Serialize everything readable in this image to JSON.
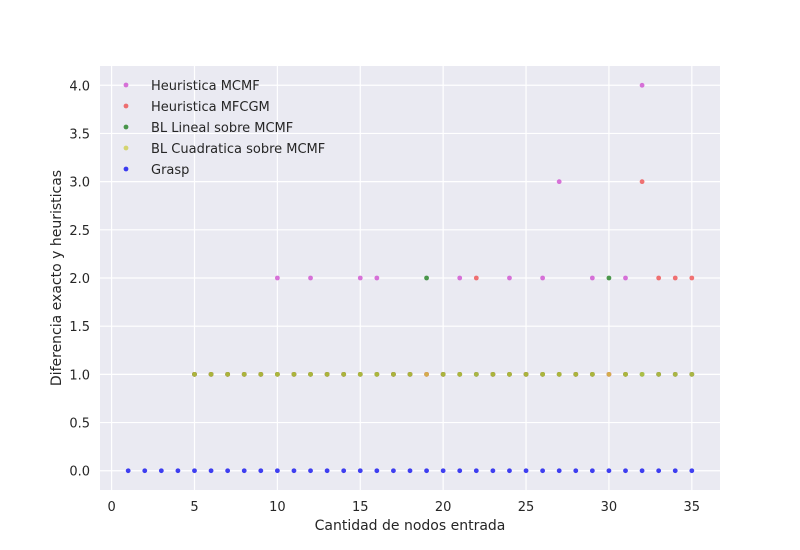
{
  "chart_data": {
    "type": "scatter",
    "xlabel": "Cantidad de nodos entrada",
    "ylabel": "Diferencia exacto y heuristicas",
    "xlim": [
      -0.7,
      36.7
    ],
    "ylim": [
      -0.2,
      4.2
    ],
    "xticks": [
      0,
      5,
      10,
      15,
      20,
      25,
      30,
      35
    ],
    "yticks": [
      0.0,
      0.5,
      1.0,
      1.5,
      2.0,
      2.5,
      3.0,
      3.5,
      4.0
    ],
    "xtick_labels": [
      "0",
      "5",
      "10",
      "15",
      "20",
      "25",
      "30",
      "35"
    ],
    "ytick_labels": [
      "0.0",
      "0.5",
      "1.0",
      "1.5",
      "2.0",
      "2.5",
      "3.0",
      "3.5",
      "4.0"
    ],
    "grid": true,
    "legend_position": "top-left",
    "series": [
      {
        "name": "Heuristica MCMF",
        "color": "#cc44cc",
        "x": [
          5,
          6,
          7,
          8,
          9,
          10,
          11,
          12,
          13,
          14,
          15,
          16,
          17,
          18,
          19,
          20,
          21,
          22,
          23,
          24,
          25,
          26,
          27,
          28,
          29,
          30,
          31,
          32,
          33,
          34,
          35
        ],
        "y": [
          1,
          1,
          1,
          1,
          1,
          2,
          1,
          2,
          1,
          1,
          2,
          2,
          1,
          1,
          1,
          1,
          2,
          1,
          1,
          2,
          1,
          2,
          3,
          1,
          2,
          1,
          2,
          4,
          1,
          1,
          1
        ]
      },
      {
        "name": "Heuristica MFCGM",
        "color": "#ee4444",
        "x": [
          5,
          6,
          7,
          8,
          9,
          10,
          11,
          12,
          13,
          14,
          15,
          16,
          17,
          18,
          19,
          20,
          21,
          22,
          23,
          24,
          25,
          26,
          27,
          28,
          29,
          30,
          31,
          32,
          33,
          34,
          35
        ],
        "y": [
          1,
          1,
          1,
          1,
          1,
          1,
          1,
          1,
          1,
          1,
          1,
          1,
          1,
          1,
          1,
          1,
          1,
          2,
          1,
          1,
          1,
          1,
          1,
          1,
          1,
          1,
          1,
          3,
          2,
          2,
          2
        ]
      },
      {
        "name": "BL Lineal sobre MCMF",
        "color": "#117711",
        "x": [
          5,
          6,
          7,
          8,
          9,
          10,
          11,
          12,
          13,
          14,
          15,
          16,
          17,
          18,
          19,
          20,
          21,
          22,
          23,
          24,
          25,
          26,
          27,
          28,
          29,
          30,
          31,
          32,
          33,
          34,
          35
        ],
        "y": [
          1,
          1,
          1,
          1,
          1,
          1,
          1,
          1,
          1,
          1,
          1,
          1,
          1,
          1,
          2,
          1,
          1,
          1,
          1,
          1,
          1,
          1,
          1,
          1,
          1,
          2,
          1,
          1,
          1,
          1,
          1
        ]
      },
      {
        "name": "BL Cuadratica sobre MCMF",
        "color": "#cccc44",
        "x": [
          5,
          6,
          7,
          8,
          9,
          10,
          11,
          12,
          13,
          14,
          15,
          16,
          17,
          18,
          19,
          20,
          21,
          22,
          23,
          24,
          25,
          26,
          27,
          28,
          29,
          30,
          31,
          32,
          33,
          34,
          35
        ],
        "y": [
          1,
          1,
          1,
          1,
          1,
          1,
          1,
          1,
          1,
          1,
          1,
          1,
          1,
          1,
          1,
          1,
          1,
          1,
          1,
          1,
          1,
          1,
          1,
          1,
          1,
          1,
          1,
          1,
          1,
          1,
          1
        ]
      },
      {
        "name": "Grasp",
        "color": "#0000ee",
        "x": [
          1,
          2,
          3,
          4,
          5,
          6,
          7,
          8,
          9,
          10,
          11,
          12,
          13,
          14,
          15,
          16,
          17,
          18,
          19,
          20,
          21,
          22,
          23,
          24,
          25,
          26,
          27,
          28,
          29,
          30,
          31,
          32,
          33,
          34,
          35
        ],
        "y": [
          0,
          0,
          0,
          0,
          0,
          0,
          0,
          0,
          0,
          0,
          0,
          0,
          0,
          0,
          0,
          0,
          0,
          0,
          0,
          0,
          0,
          0,
          0,
          0,
          0,
          0,
          0,
          0,
          0,
          0,
          0,
          0,
          0,
          0,
          0
        ]
      }
    ]
  }
}
